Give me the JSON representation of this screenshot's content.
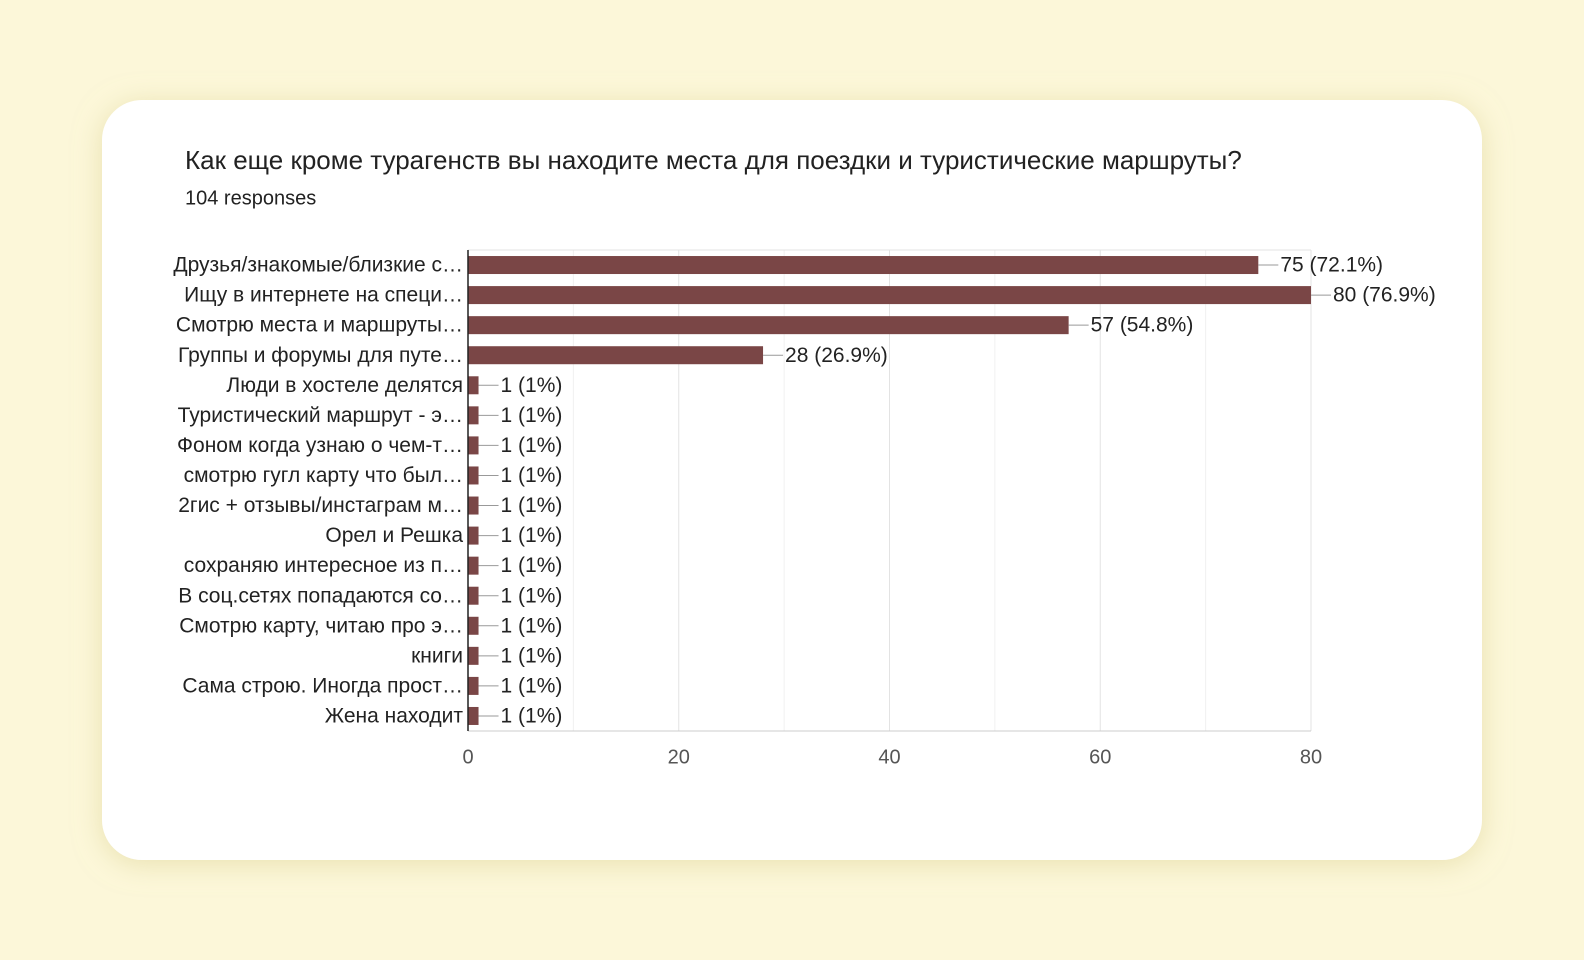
{
  "chart_data": {
    "type": "bar",
    "orientation": "horizontal",
    "title": "Как еще кроме турагенств вы находите места для поездки и туристические маршруты?",
    "subtitle": "104 responses",
    "categories": [
      "Друзья/знакомые/близкие с…",
      "Ищу в интернете на специ…",
      "Смотрю места и маршруты…",
      "Группы и форумы для путе…",
      "Люди в хостеле делятся",
      "Туристический маршрут - э…",
      "Фоном когда узнаю о чем-т…",
      "смотрю гугл карту что был…",
      "2гис + отзывы/инстаграм м…",
      "Орел и Решка",
      "сохраняю интересное из п…",
      "В соц.сетях попадаются со…",
      "Смотрю карту, читаю про э…",
      "книги",
      "Сама строю. Иногда прост…",
      "Жена находит"
    ],
    "values": [
      75,
      80,
      57,
      28,
      1,
      1,
      1,
      1,
      1,
      1,
      1,
      1,
      1,
      1,
      1,
      1
    ],
    "value_labels": [
      "75 (72.1%)",
      "80 (76.9%)",
      "57 (54.8%)",
      "28 (26.9%)",
      "1 (1%)",
      "1 (1%)",
      "1 (1%)",
      "1 (1%)",
      "1 (1%)",
      "1 (1%)",
      "1 (1%)",
      "1 (1%)",
      "1 (1%)",
      "1 (1%)",
      "1 (1%)",
      "1 (1%)"
    ],
    "color": "#7a4646",
    "xlim": [
      0,
      80
    ],
    "xticks": [
      0,
      20,
      40,
      60,
      80
    ],
    "grid": true
  }
}
